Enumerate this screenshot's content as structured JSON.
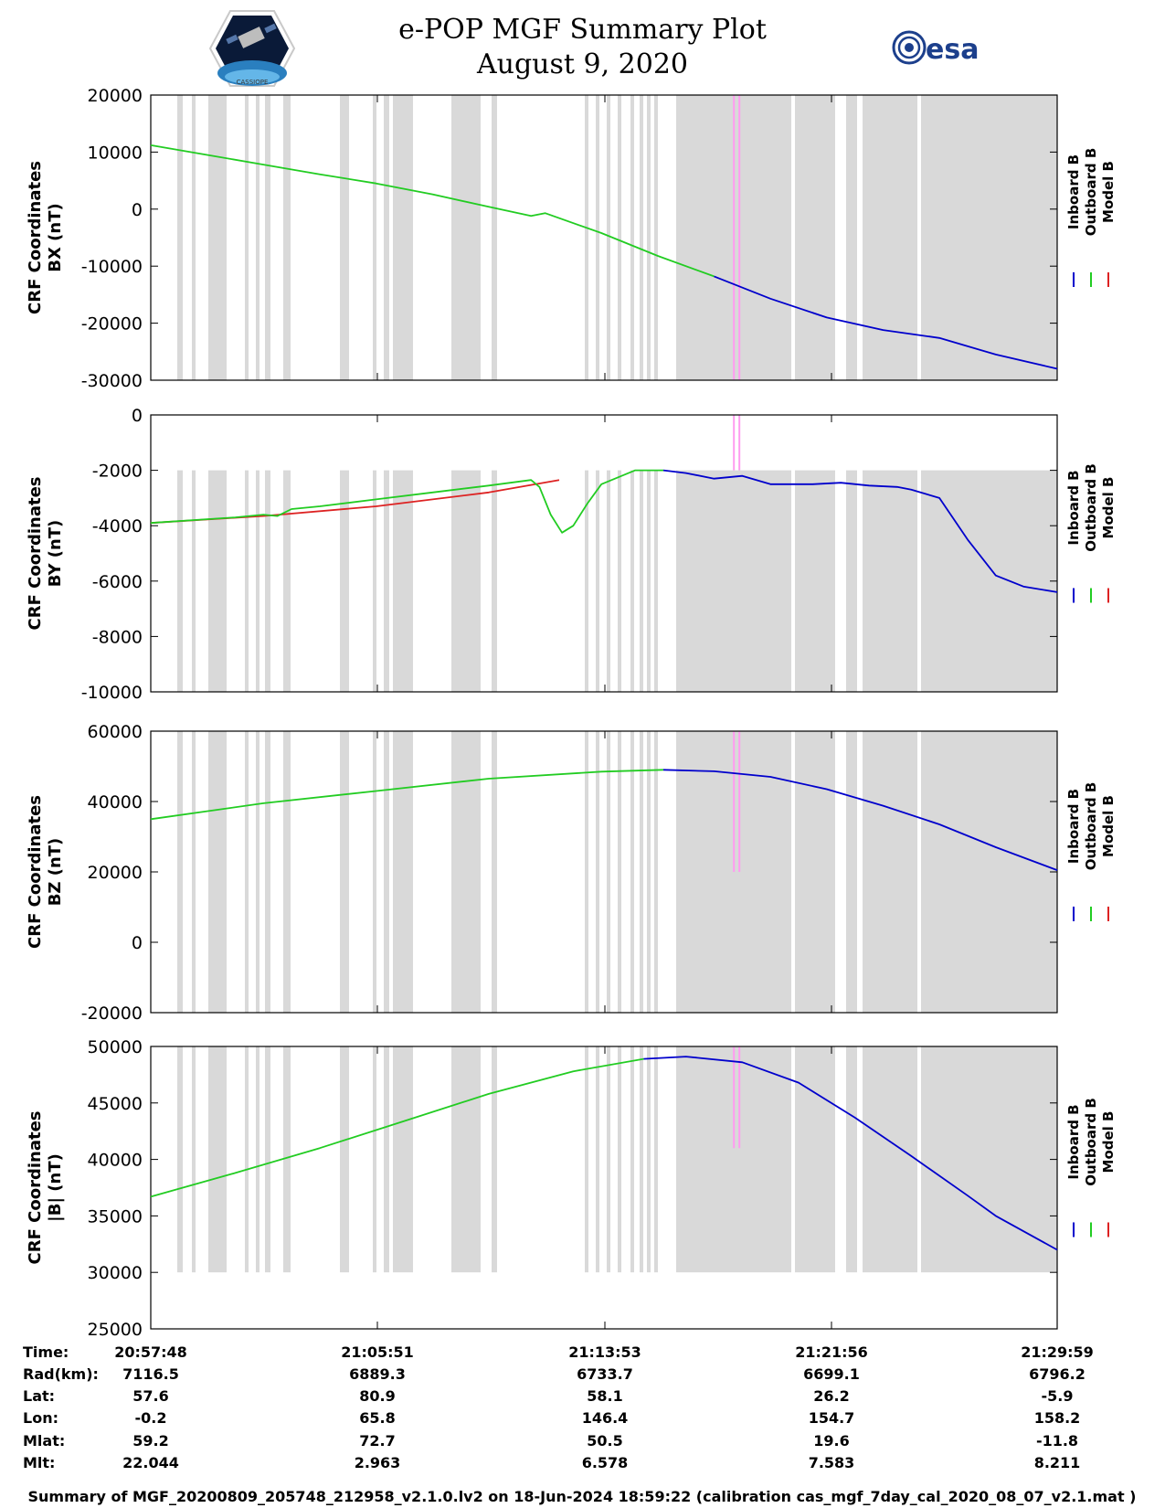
{
  "header": {
    "title": "e-POP MGF Summary Plot",
    "subtitle": "August 9, 2020",
    "mission_logo_text": "CASSIOPE",
    "esa_logo_text": "esa"
  },
  "colors": {
    "inboard": "#0000cc",
    "outboard": "#22cc22",
    "model": "#dd2222",
    "gap": "#d9d9d9",
    "marker": "#ff9cf0"
  },
  "legend": [
    "Inboard B",
    "Outboard B",
    "Model B"
  ],
  "orbit_info": {
    "labels": [
      "Time:",
      "Rad(km):",
      "Lat:",
      "Lon:",
      "Mlat:",
      "Mlt:"
    ],
    "columns": [
      [
        "20:57:48",
        "7116.5",
        "57.6",
        "-0.2",
        "59.2",
        "22.044"
      ],
      [
        "21:05:51",
        "6889.3",
        "80.9",
        "65.8",
        "72.7",
        "2.963"
      ],
      [
        "21:13:53",
        "6733.7",
        "58.1",
        "146.4",
        "50.5",
        "6.578"
      ],
      [
        "21:21:56",
        "6699.1",
        "26.2",
        "154.7",
        "19.6",
        "7.583"
      ],
      [
        "21:29:59",
        "6796.2",
        "-5.9",
        "158.2",
        "-11.8",
        "8.211"
      ]
    ]
  },
  "footer": "Summary of MGF_20200809_205748_212958_v2.1.0.lv2 on 18-Jun-2024 18:59:22 (calibration cas_mgf_7day_cal_2020_08_07_v2.1.mat )",
  "chart_data": [
    {
      "type": "line",
      "ylabel": [
        "CRF Coordinates",
        "BX (nT)"
      ],
      "ylim": [
        -30000,
        20000
      ],
      "yticks": [
        20000,
        10000,
        0,
        -10000,
        -20000,
        -30000
      ],
      "ytick_labels": [
        "20000",
        "10000",
        "0",
        "-10000",
        "-20000",
        "-30000"
      ],
      "xlim": [
        0,
        32.18
      ],
      "gap_band": [
        -30000,
        20000
      ],
      "marker_x": 20.8,
      "marker_range": [
        -30000,
        20000
      ],
      "series": [
        {
          "name": "Outboard B",
          "x": [
            0,
            2,
            4,
            6,
            8,
            10,
            12,
            13.5,
            14,
            16,
            18,
            20
          ],
          "values": [
            11200,
            9500,
            7800,
            6100,
            4500,
            2600,
            400,
            -1200,
            -700,
            -4200,
            -8200,
            -11800
          ]
        },
        {
          "name": "Inboard B",
          "x": [
            20,
            22,
            24,
            26,
            28,
            30,
            32.18
          ],
          "values": [
            -11800,
            -15700,
            -19000,
            -21200,
            -22600,
            -25500,
            -28000
          ]
        }
      ]
    },
    {
      "type": "line",
      "ylabel": [
        "CRF Coordinates",
        "BY (nT)"
      ],
      "ylim": [
        -10000,
        0
      ],
      "yticks": [
        0,
        -2000,
        -4000,
        -6000,
        -8000,
        -10000
      ],
      "ytick_labels": [
        "0",
        "-2000",
        "-4000",
        "-6000",
        "-8000",
        "-10000"
      ],
      "xlim": [
        0,
        32.18
      ],
      "gap_band": [
        -10000,
        -2000
      ],
      "marker_x": 20.8,
      "marker_range": [
        -2000,
        0
      ],
      "series": [
        {
          "name": "Model B",
          "x": [
            0,
            4,
            8,
            12,
            14.5
          ],
          "values": [
            -3900,
            -3650,
            -3300,
            -2800,
            -2350
          ]
        },
        {
          "name": "Outboard B",
          "x": [
            0,
            3,
            4,
            4.5,
            5,
            6,
            8,
            10,
            12,
            13.5,
            13.8,
            14.2,
            14.6,
            15,
            15.5,
            16,
            17.2,
            18.2
          ],
          "values": [
            -3900,
            -3700,
            -3600,
            -3650,
            -3400,
            -3300,
            -3050,
            -2800,
            -2550,
            -2350,
            -2600,
            -3600,
            -4250,
            -4000,
            -3200,
            -2500,
            -2000,
            -2000
          ]
        },
        {
          "name": "Inboard B",
          "x": [
            18.2,
            19,
            20,
            21,
            22,
            23.5,
            24.5,
            25.5,
            26.5,
            27,
            28,
            29,
            30,
            31,
            32.18
          ],
          "values": [
            -2000,
            -2100,
            -2300,
            -2200,
            -2500,
            -2500,
            -2450,
            -2550,
            -2600,
            -2700,
            -3000,
            -4500,
            -5800,
            -6200,
            -6400
          ]
        }
      ]
    },
    {
      "type": "line",
      "ylabel": [
        "CRF Coordinates",
        "BZ (nT)"
      ],
      "ylim": [
        -20000,
        60000
      ],
      "yticks": [
        60000,
        40000,
        20000,
        0,
        -20000
      ],
      "ytick_labels": [
        "60000",
        "40000",
        "20000",
        "0",
        "-20000"
      ],
      "xlim": [
        0,
        32.18
      ],
      "gap_band": [
        -20000,
        60000
      ],
      "marker_x": 20.8,
      "marker_range": [
        20000,
        60000
      ],
      "series": [
        {
          "name": "Outboard B",
          "x": [
            0,
            4,
            8,
            12,
            16,
            18.2
          ],
          "values": [
            35000,
            39500,
            43000,
            46500,
            48500,
            49000
          ]
        },
        {
          "name": "Inboard B",
          "x": [
            18.2,
            20,
            22,
            24,
            26,
            28,
            30,
            32.18
          ],
          "values": [
            49000,
            48600,
            47000,
            43500,
            38800,
            33500,
            27000,
            20500
          ]
        }
      ]
    },
    {
      "type": "line",
      "ylabel": [
        "CRF Coordinates",
        "|B| (nT)"
      ],
      "ylim": [
        25000,
        50000
      ],
      "yticks": [
        50000,
        45000,
        40000,
        35000,
        30000,
        25000
      ],
      "ytick_labels": [
        "50000",
        "45000",
        "40000",
        "35000",
        "30000",
        "25000"
      ],
      "xlim": [
        0,
        32.18
      ],
      "gap_band": [
        30000,
        50000
      ],
      "marker_x": 20.8,
      "marker_range": [
        41000,
        50000
      ],
      "series": [
        {
          "name": "Outboard B",
          "x": [
            0,
            3,
            6,
            9,
            12,
            15,
            17.5
          ],
          "values": [
            36700,
            38800,
            41000,
            43400,
            45800,
            47800,
            48900
          ]
        },
        {
          "name": "Inboard B",
          "x": [
            17.5,
            19,
            21,
            23,
            25,
            27,
            29,
            30,
            32.18
          ],
          "values": [
            48900,
            49100,
            48600,
            46800,
            43700,
            40300,
            36800,
            35000,
            32000
          ]
        }
      ]
    }
  ]
}
